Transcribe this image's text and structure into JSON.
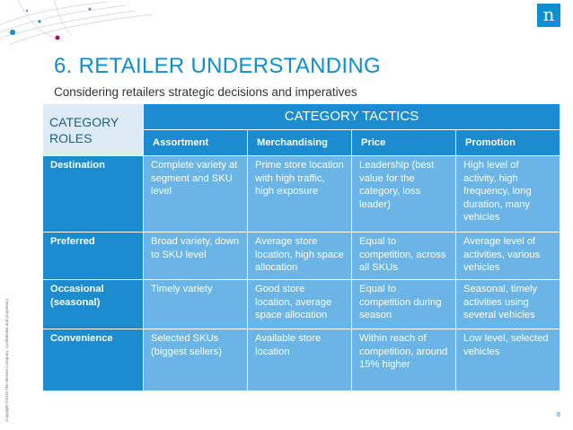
{
  "brand": {
    "logo_letter": "n",
    "accent": "#0d8fd1"
  },
  "copyright": "Copyright ©2016 The Nielsen Company. Confidential and proprietary.",
  "title": "6. RETAILER UNDERSTANDING",
  "subtitle": "Considering retailers strategic decisions and imperatives",
  "table": {
    "roles_header": "CATEGORY ROLES",
    "tactics_header": "CATEGORY TACTICS",
    "columns": [
      "Assortment",
      "Merchandising",
      "Price",
      "Promotion"
    ],
    "rows": [
      {
        "role": "Destination",
        "cells": [
          "Complete variety at segment and SKU level",
          "Prime store location with high traffic, high exposure",
          "Leadership (best value for the category, loss leader)",
          "High level of activity, high frequency, long duration, many vehicles"
        ]
      },
      {
        "role": "Preferred",
        "cells": [
          "Broad variety, down to SKU level",
          "Average store location, high space allocation",
          "Equal to competition, across all SKUs",
          "Average level of activities, various vehicles"
        ]
      },
      {
        "role": "Occasional (seasonal)",
        "cells": [
          "Timely variety",
          "Good store location, average space allocation",
          "Equal to competition during season",
          "Seasonal, timely activities using several vehicles"
        ]
      },
      {
        "role": "Convenience",
        "cells": [
          "Selected SKUs (biggest sellers)",
          "Available store location",
          "Within reach of competition, around 15% higher",
          "Low level, selected vehicles"
        ]
      }
    ]
  },
  "page_number": "8"
}
